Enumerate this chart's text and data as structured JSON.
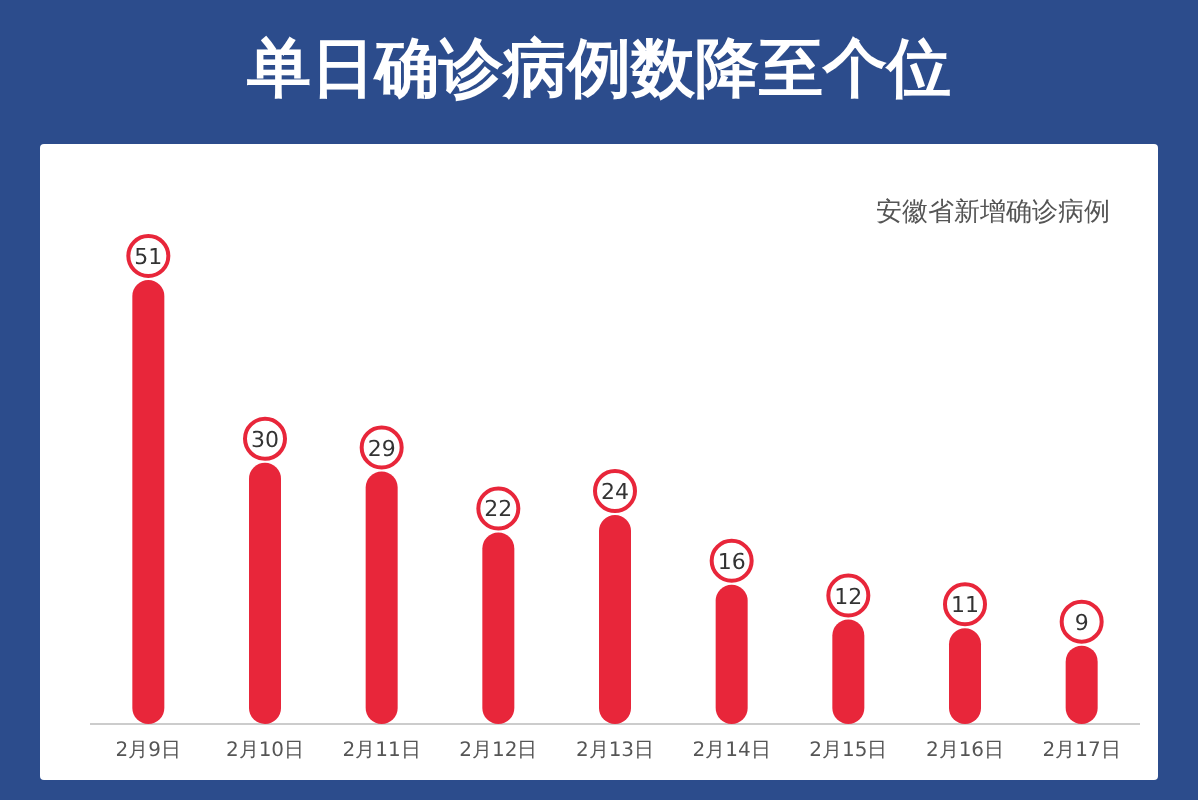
{
  "chart_data": {
    "type": "bar",
    "title": "单日确诊病例数降至个位",
    "subtitle": "安徽省新增确诊病例",
    "categories": [
      "2月9日",
      "2月10日",
      "2月11日",
      "2月12日",
      "2月13日",
      "2月14日",
      "2月15日",
      "2月16日",
      "2月17日"
    ],
    "values": [
      51,
      30,
      29,
      22,
      24,
      16,
      12,
      11,
      9
    ],
    "color": "#e8263a",
    "data_labels": true
  }
}
